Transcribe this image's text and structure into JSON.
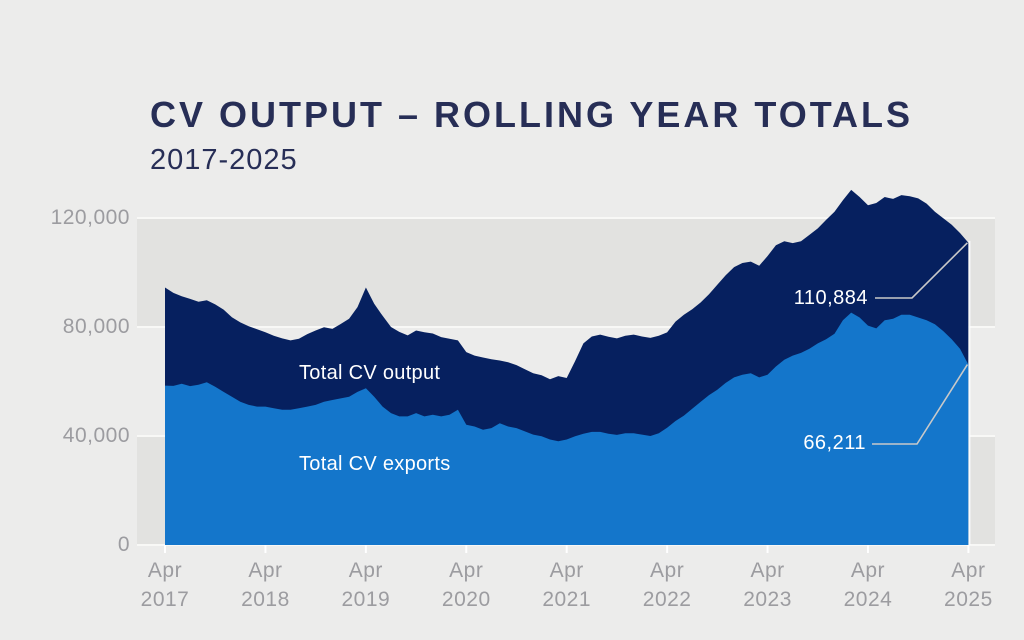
{
  "page": {
    "background": "#ececeb"
  },
  "header": {
    "title": "CV OUTPUT – ROLLING YEAR TOTALS",
    "subtitle": "2017-2025"
  },
  "chart_data": {
    "type": "area",
    "title": "CV OUTPUT – ROLLING YEAR TOTALS",
    "subtitle": "2017-2025",
    "x_unit": "month",
    "x_start": "Apr 2017",
    "x_end": "Apr 2025",
    "ylim": [
      0,
      132000
    ],
    "grid": {
      "band_color": "#e2e2e0",
      "line_color": "#f8f8f6",
      "tick_color": "#ffffff",
      "axis_label_color": "#9c9ca0",
      "leader_line_color": "#c9c9c9",
      "title_color": "#272e56"
    },
    "y_ticks": [
      {
        "value": 0,
        "label": "0"
      },
      {
        "value": 40000,
        "label": "40,000"
      },
      {
        "value": 80000,
        "label": "80,000"
      },
      {
        "value": 120000,
        "label": "120,000"
      }
    ],
    "x_ticks": [
      {
        "month": "Apr",
        "year": "2017"
      },
      {
        "month": "Apr",
        "year": "2018"
      },
      {
        "month": "Apr",
        "year": "2019"
      },
      {
        "month": "Apr",
        "year": "2020"
      },
      {
        "month": "Apr",
        "year": "2021"
      },
      {
        "month": "Apr",
        "year": "2022"
      },
      {
        "month": "Apr",
        "year": "2023"
      },
      {
        "month": "Apr",
        "year": "2024"
      },
      {
        "month": "Apr",
        "year": "2025"
      }
    ],
    "series": [
      {
        "name": "Total CV output",
        "color": "#06205f",
        "values": [
          94500,
          92500,
          91300,
          90300,
          89300,
          89800,
          88300,
          86400,
          83600,
          81700,
          80300,
          79200,
          78100,
          76800,
          75800,
          75100,
          75700,
          77400,
          78700,
          79900,
          79300,
          81100,
          83000,
          87300,
          94500,
          88500,
          84100,
          80000,
          78200,
          76900,
          78700,
          78100,
          77600,
          76300,
          75700,
          75100,
          70800,
          69500,
          68800,
          68200,
          67700,
          67100,
          66000,
          64500,
          63000,
          62300,
          60800,
          62000,
          61300,
          67500,
          74000,
          76500,
          77200,
          76400,
          75800,
          76800,
          77200,
          76500,
          76000,
          76800,
          78000,
          82000,
          84500,
          86500,
          89000,
          92000,
          95500,
          99000,
          102000,
          103500,
          104000,
          102500,
          106000,
          110000,
          111500,
          110800,
          111500,
          113800,
          116200,
          119300,
          122300,
          126500,
          130300,
          127700,
          124700,
          125500,
          127700,
          127000,
          128400,
          128000,
          127200,
          125300,
          122300,
          119900,
          117500,
          114500,
          110884
        ]
      },
      {
        "name": "Total CV exports",
        "color": "#1476cb",
        "values": [
          58500,
          58400,
          59200,
          58300,
          58800,
          59700,
          58100,
          56200,
          54400,
          52600,
          51400,
          50800,
          50800,
          50200,
          49600,
          49600,
          50200,
          50800,
          51400,
          52600,
          53200,
          53800,
          54400,
          56200,
          57500,
          54400,
          50800,
          48400,
          47200,
          47200,
          48400,
          47200,
          47800,
          47200,
          47800,
          49600,
          44100,
          43500,
          42300,
          42900,
          44700,
          43500,
          42900,
          41700,
          40500,
          39900,
          38700,
          38100,
          38700,
          39900,
          40800,
          41500,
          41500,
          40800,
          40400,
          41000,
          41000,
          40500,
          40000,
          41000,
          43000,
          45500,
          47500,
          50000,
          52500,
          55000,
          57000,
          59500,
          61500,
          62500,
          63000,
          61500,
          62500,
          65500,
          68000,
          69500,
          70500,
          72000,
          74000,
          75500,
          77500,
          82500,
          85300,
          83500,
          80500,
          79500,
          82500,
          83000,
          84500,
          84500,
          83500,
          82500,
          81000,
          78500,
          75500,
          72000,
          66211
        ]
      }
    ],
    "annotations": [
      {
        "series": "Total CV output",
        "label": "110,884",
        "value": 110884
      },
      {
        "series": "Total CV exports",
        "label": "66,211",
        "value": 66211
      }
    ]
  }
}
